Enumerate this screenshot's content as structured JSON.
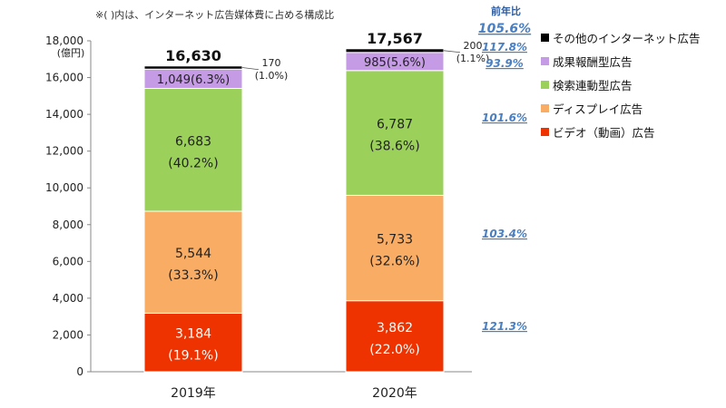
{
  "note": "※( )内は、インターネット広告媒体費に占める構成比",
  "yoy_header": "前年比",
  "colors": {
    "other": "#000000",
    "affiliate": "#c69be6",
    "search": "#9bd15b",
    "display": "#f9ad64",
    "video": "#ee3300",
    "yoy_text": "#4a7fc1",
    "axis": "#888888"
  },
  "chart_data": {
    "type": "bar",
    "stacked": true,
    "title": "",
    "xlabel": "",
    "ylabel": "(億円)",
    "ylim": [
      0,
      18000
    ],
    "yticks": [
      0,
      2000,
      4000,
      6000,
      8000,
      10000,
      12000,
      14000,
      16000,
      18000
    ],
    "ytick_labels": [
      "0",
      "2,000",
      "4,000",
      "6,000",
      "8,000",
      "10,000",
      "12,000",
      "14,000",
      "16,000",
      "18,000"
    ],
    "categories": [
      "2019年",
      "2020年"
    ],
    "totals": [
      16630,
      17567
    ],
    "total_labels": [
      "16,630",
      "17,567"
    ],
    "legend_position": "right",
    "series": [
      {
        "key": "video",
        "name": "ビデオ（動画）広告",
        "values": [
          3184,
          3862
        ],
        "labels": [
          [
            "3,184",
            "(19.1%)"
          ],
          [
            "3,862",
            "(22.0%)"
          ]
        ],
        "yoy": "121.3%"
      },
      {
        "key": "display",
        "name": "ディスプレイ広告",
        "values": [
          5544,
          5733
        ],
        "labels": [
          [
            "5,544",
            "(33.3%)"
          ],
          [
            "5,733",
            "(32.6%)"
          ]
        ],
        "yoy": "103.4%"
      },
      {
        "key": "search",
        "name": "検索連動型広告",
        "values": [
          6683,
          6787
        ],
        "labels": [
          [
            "6,683",
            "(40.2%)"
          ],
          [
            "6,787",
            "(38.6%)"
          ]
        ],
        "yoy": "101.6%"
      },
      {
        "key": "affiliate",
        "name": "成果報酬型広告",
        "values": [
          1049,
          985
        ],
        "labels": [
          [
            "1,049(6.3%)"
          ],
          [
            "985(5.6%)"
          ]
        ],
        "yoy": "93.9%"
      },
      {
        "key": "other",
        "name": "その他のインターネット広告",
        "values": [
          170,
          200
        ],
        "labels": [
          [
            "170",
            "(1.0%)"
          ],
          [
            "200",
            "(1.1%)"
          ]
        ],
        "yoy": "117.8%"
      }
    ],
    "total_yoy": "105.6%"
  }
}
